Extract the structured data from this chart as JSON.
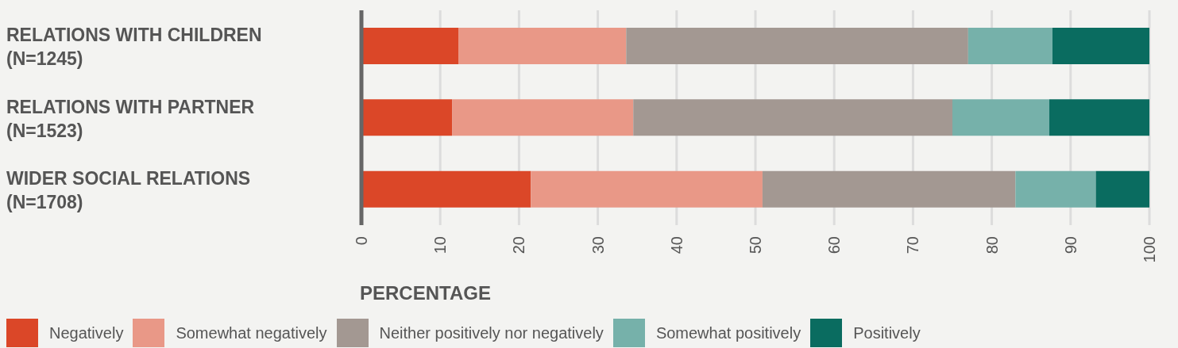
{
  "chart_data": {
    "type": "bar",
    "orientation": "horizontal",
    "stacked": true,
    "xlabel": "PERCENTAGE",
    "categories": [
      "RELATIONS WITH CHILDREN (N=1245)",
      "RELATIONS WITH PARTNER (N=1523)",
      "WIDER SOCIAL RELATIONS (N=1708)"
    ],
    "series": [
      {
        "name": "Negatively",
        "color": "#db4728",
        "values": [
          12.3,
          11.5,
          21.5
        ]
      },
      {
        "name": "Somewhat negatively",
        "color": "#e99887",
        "values": [
          21.3,
          23.0,
          29.4
        ]
      },
      {
        "name": "Neither positively nor negatively",
        "color": "#a39892",
        "values": [
          43.4,
          40.5,
          32.1
        ]
      },
      {
        "name": "Somewhat positively",
        "color": "#76b1aa",
        "values": [
          10.7,
          12.3,
          10.2
        ]
      },
      {
        "name": "Positively",
        "color": "#0a6c60",
        "values": [
          12.3,
          12.7,
          6.8
        ]
      }
    ],
    "xlim": [
      0,
      100
    ],
    "xticks": [
      0,
      10,
      20,
      30,
      40,
      50,
      60,
      70,
      80,
      90,
      100
    ],
    "grid": "x",
    "legend": "bottom"
  }
}
